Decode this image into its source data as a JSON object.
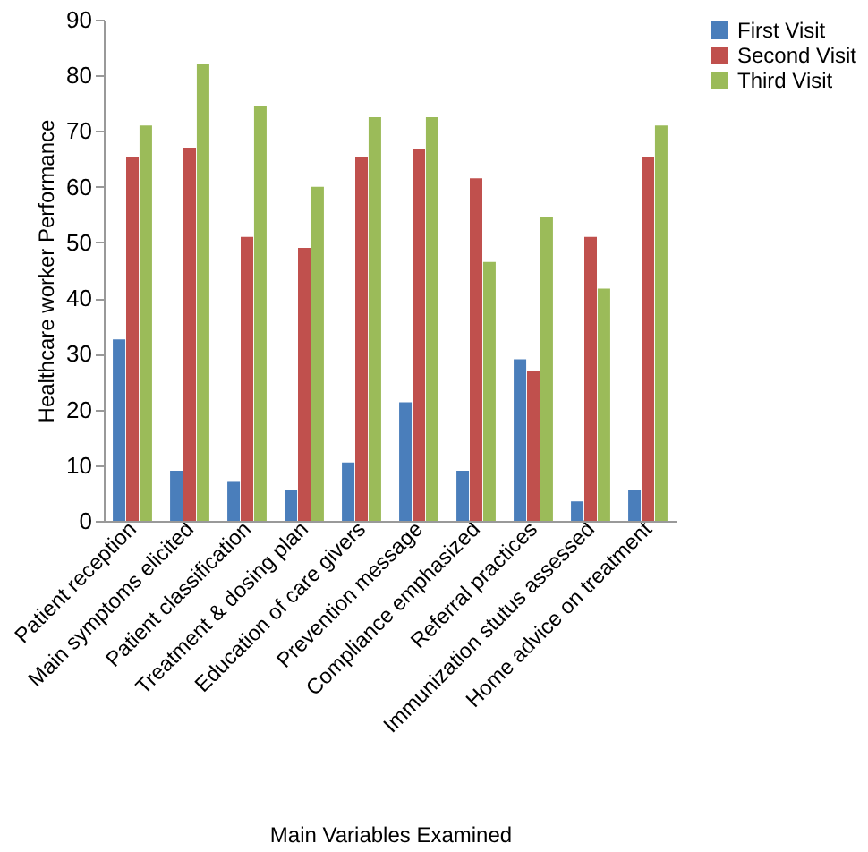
{
  "chart_data": {
    "type": "bar",
    "xlabel": "Main Variables Examined",
    "ylabel": "Healthcare worker Performance",
    "categories": [
      "Patient reception",
      "Main symptoms elicited",
      "Patient classification",
      "Treatment & dosing plan",
      "Education of care givers",
      "Prevention message",
      "Compliance emphasized",
      "Referral practices",
      "Immunization stutus assessed",
      "Home advice on treatment"
    ],
    "series": [
      {
        "name": "First Visit",
        "color": "#4a7ebb",
        "values": [
          32.6,
          9,
          7,
          5.5,
          10.5,
          21.3,
          9,
          29,
          3.5,
          5.5
        ]
      },
      {
        "name": "Second Visit",
        "color": "#c0504d",
        "values": [
          65.4,
          67,
          51,
          49,
          65.4,
          66.7,
          61.5,
          27,
          51,
          65.4
        ]
      },
      {
        "name": "Third Visit",
        "color": "#9bbb59",
        "values": [
          71,
          82,
          74.5,
          60,
          72.5,
          72.5,
          46.5,
          54.5,
          41.7,
          71
        ]
      }
    ],
    "ylim": [
      0,
      90
    ],
    "yticks": [
      0,
      10,
      20,
      30,
      40,
      50,
      60,
      70,
      80,
      90
    ],
    "grid": false,
    "legend": "right"
  }
}
